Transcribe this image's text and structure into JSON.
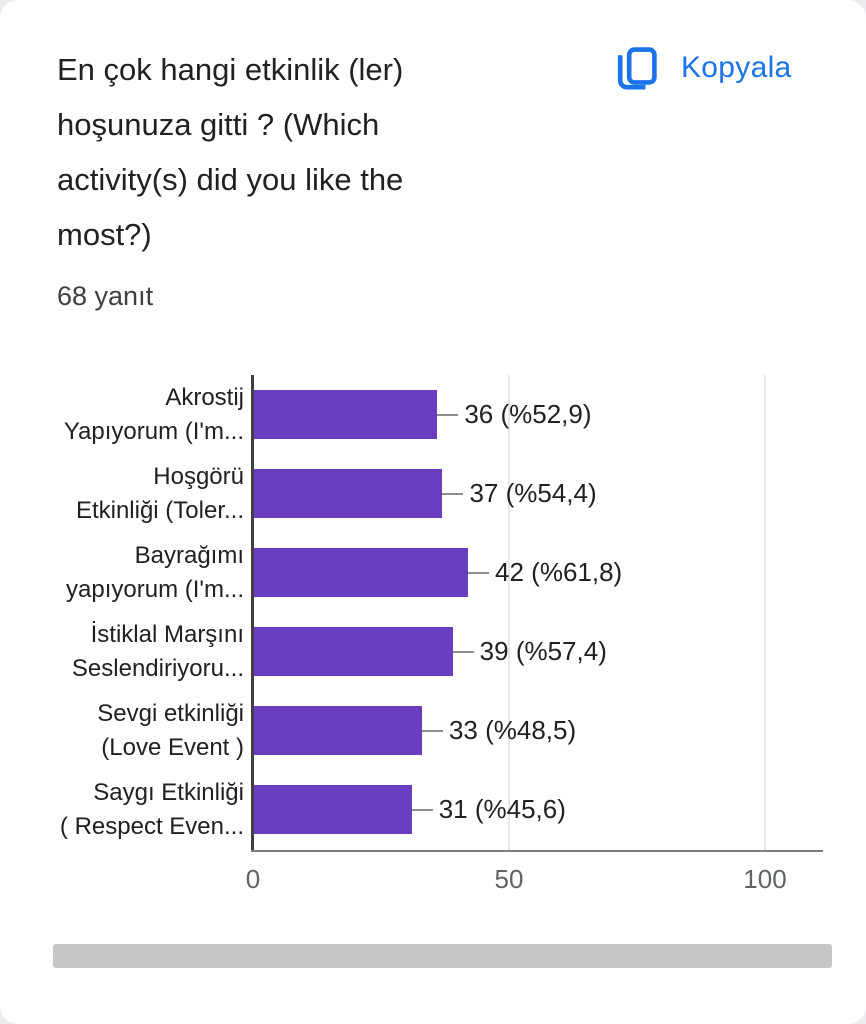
{
  "header": {
    "title": "En çok hangi etkinlik (ler) hoşunuza gitti ? (Which activity(s) did you like the most?)",
    "title_lines": [
      "En çok hangi etkinlik (ler)",
      "hoşunuza gitti ? (Which",
      "activity(s) did you like the",
      "most?)"
    ],
    "copy_button_label": "Kopyala",
    "response_count": "68 yanıt",
    "accent_color": "#1a73e8"
  },
  "chart_data": {
    "type": "bar",
    "orientation": "horizontal",
    "title": "",
    "xlabel": "",
    "ylabel": "",
    "categories": [
      "Akrostij Yapıyorum (I'm...",
      "Hoşgörü Etkinliği (Toler...",
      "Bayrağımı yapıyorum (I'm...",
      "İstiklal Marşını Seslendiriyoru...",
      "Sevgi etkinliği (Love Event )",
      "Saygı Etkinliği ( Respect Even..."
    ],
    "category_lines": [
      [
        "Akrostij",
        "Yapıyorum (I'm..."
      ],
      [
        "Hoşgörü",
        "Etkinliği (Toler..."
      ],
      [
        "Bayrağımı",
        "yapıyorum (I'm..."
      ],
      [
        "İstiklal Marşını",
        "Seslendiriyoru..."
      ],
      [
        "Sevgi etkinliği",
        "(Love Event )"
      ],
      [
        "Saygı Etkinliği",
        "( Respect Even..."
      ]
    ],
    "values": [
      36,
      37,
      42,
      39,
      33,
      31
    ],
    "percentages": [
      52.9,
      54.4,
      61.8,
      57.4,
      48.5,
      45.6
    ],
    "data_labels": [
      "36 (%52,9)",
      "37 (%54,4)",
      "42 (%61,8)",
      "39 (%57,4)",
      "33 (%48,5)",
      "31 (%45,6)"
    ],
    "x_ticks": [
      "0",
      "50",
      "100"
    ],
    "x_tick_values": [
      0,
      50,
      100
    ],
    "xlim": [
      0,
      100
    ],
    "grid": true,
    "legend": false,
    "bar_color": "#6a3ec1",
    "total_responses": 68
  },
  "scrollbar": {
    "color": "#c6c6c6"
  }
}
